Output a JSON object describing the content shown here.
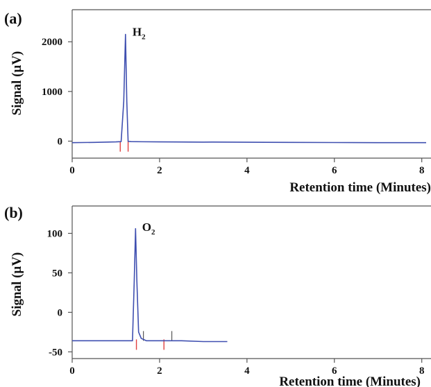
{
  "chart_data": [
    {
      "panel": "(a)",
      "type": "line",
      "xlabel": "Retention time (Minutes)",
      "ylabel": "Signal (µV)",
      "xlim": [
        0,
        8.1
      ],
      "ylim": [
        -300,
        2450
      ],
      "xticks": [
        "0",
        "2",
        "4",
        "6",
        "8"
      ],
      "yticks": [
        "0",
        "1000",
        "2000"
      ],
      "grid": false,
      "annotation": {
        "base": "H",
        "sub": "2",
        "x": 1.38,
        "y": 2120
      },
      "x": [
        0,
        0.5,
        1.0,
        1.12,
        1.18,
        1.22,
        1.25,
        1.28,
        1.35,
        1.6,
        2.0,
        3.0,
        3.2,
        4.0,
        5.0,
        6.0,
        7.0,
        8.1
      ],
      "y": [
        -30,
        -25,
        -15,
        -10,
        800,
        2150,
        800,
        -5,
        -10,
        -12,
        -15,
        -20,
        -18,
        -22,
        -25,
        -28,
        -30,
        -30
      ],
      "markers": [
        {
          "x": 1.1,
          "kind": "red"
        },
        {
          "x": 1.28,
          "kind": "red"
        }
      ]
    },
    {
      "panel": "(b)",
      "type": "line",
      "xlabel": "Retention time (Minutes)",
      "ylabel": "Signal (µV)",
      "xlim": [
        0,
        8.1
      ],
      "ylim": [
        -55,
        125
      ],
      "xticks": [
        "0",
        "2",
        "4",
        "6",
        "8"
      ],
      "yticks": [
        "-50",
        "0",
        "50",
        "100"
      ],
      "grid": false,
      "annotation": {
        "base": "O",
        "sub": "2",
        "x": 1.6,
        "y": 103
      },
      "x": [
        0,
        0.5,
        1.0,
        1.38,
        1.42,
        1.45,
        1.48,
        1.52,
        1.58,
        1.7,
        2.0,
        2.5,
        3.0,
        3.55
      ],
      "y": [
        -36,
        -36,
        -36,
        -36,
        40,
        106,
        40,
        -25,
        -33,
        -36,
        -36,
        -36,
        -37,
        -37
      ],
      "markers": [
        {
          "x": 1.47,
          "kind": "red"
        },
        {
          "x": 1.63,
          "kind": "dark"
        },
        {
          "x": 2.1,
          "kind": "red"
        },
        {
          "x": 2.28,
          "kind": "dark"
        }
      ]
    }
  ]
}
